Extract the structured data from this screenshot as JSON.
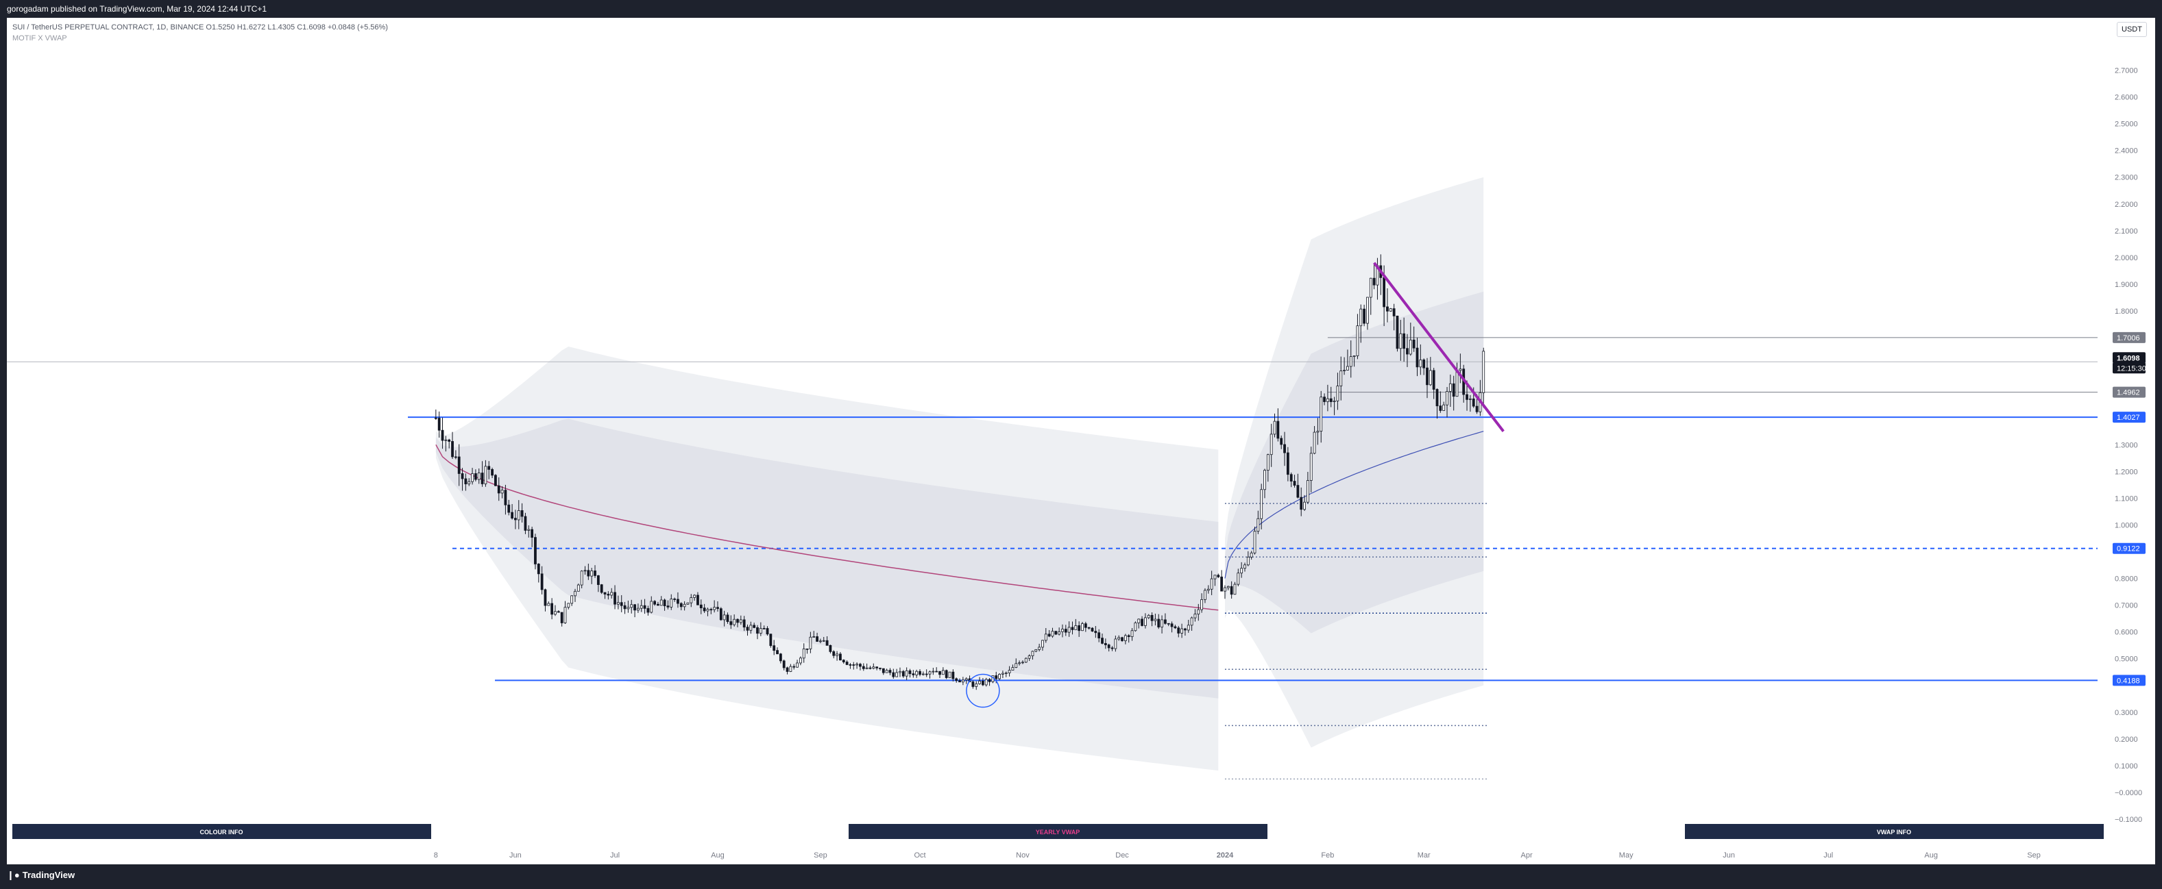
{
  "header": {
    "publisher_line": "gorogadam published on TradingView.com, Mar 19, 2024 12:44 UTC+1"
  },
  "legend": {
    "symbol_line": "SUI / TetherUS PERPETUAL CONTRACT, 1D, BINANCE",
    "open_label": "O",
    "open": "1.5250",
    "high_label": "H",
    "high": "1.6272",
    "low_label": "L",
    "low": "1.4305",
    "close_label": "C",
    "close": "1.6098",
    "change": "+0.0848 (+5.56%)",
    "indicator_line": "MOTIF X VWAP"
  },
  "currency": "USDT",
  "footer": {
    "logo_text": "TradingView"
  },
  "colors": {
    "up": "#131722",
    "down": "#131722",
    "wick": "#131722",
    "hline": "#2962ff",
    "trendline": "#9c27b0",
    "vwap_line": "#b2457a",
    "anchored_vwap": "#3f51b5",
    "band_outer": "#eef0f3",
    "band_inner": "#e1e3ea",
    "info_bar": "#1e2a47",
    "yearly_label": "#e83e8c"
  },
  "chart_data": {
    "type": "candlestick",
    "symbol": "SUI / TetherUS PERPETUAL CONTRACT",
    "timeframe": "1D",
    "exchange": "BINANCE",
    "ylim": [
      -0.1,
      2.75
    ],
    "y_ticks": [
      "2.7000",
      "2.6000",
      "2.5000",
      "2.4000",
      "2.3000",
      "2.2000",
      "2.1000",
      "2.0000",
      "1.9000",
      "1.8000",
      "1.3000",
      "1.2000",
      "1.1000",
      "1.0000",
      "0.8000",
      "0.7000",
      "0.6000",
      "0.5000",
      "0.3000",
      "0.2000",
      "0.1000",
      "−0.0000",
      "−0.1000"
    ],
    "x_ticks": [
      "8",
      "Jun",
      "Jul",
      "Aug",
      "Sep",
      "Oct",
      "Nov",
      "Dec",
      "2024",
      "Feb",
      "Mar",
      "Apr",
      "May",
      "Jun",
      "Jul",
      "Aug",
      "Sep"
    ],
    "price_labels": [
      {
        "text": "1.7006",
        "value": 1.7006,
        "style": "grey"
      },
      {
        "text": "1.6098",
        "value": 1.6098,
        "style": "last"
      },
      {
        "text": "12:15:30",
        "value": 1.6098,
        "style": "countdown"
      },
      {
        "text": "1.4962",
        "value": 1.4962,
        "style": "grey"
      },
      {
        "text": "1.4027",
        "value": 1.4027,
        "style": "blue"
      },
      {
        "text": "0.9122",
        "value": 0.9122,
        "style": "blue"
      },
      {
        "text": "0.4188",
        "value": 0.4188,
        "style": "blue"
      }
    ],
    "horizontal_lines": [
      {
        "value": 1.4027,
        "style": "solid"
      },
      {
        "value": 0.9122,
        "style": "dashed"
      },
      {
        "value": 0.4188,
        "style": "solid"
      }
    ],
    "trendline": {
      "from": [
        "2024-02-15",
        1.98
      ],
      "to": [
        "2024-03-25",
        1.35
      ]
    },
    "candles_close_path": [
      [
        "2023-05-08",
        1.4
      ],
      [
        "2023-05-12",
        1.3
      ],
      [
        "2023-05-18",
        1.15
      ],
      [
        "2023-05-24",
        1.2
      ],
      [
        "2023-05-30",
        1.05
      ],
      [
        "2023-06-05",
        1.0
      ],
      [
        "2023-06-10",
        0.7
      ],
      [
        "2023-06-15",
        0.65
      ],
      [
        "2023-06-22",
        0.85
      ],
      [
        "2023-06-28",
        0.75
      ],
      [
        "2023-07-05",
        0.68
      ],
      [
        "2023-07-15",
        0.7
      ],
      [
        "2023-07-25",
        0.72
      ],
      [
        "2023-08-05",
        0.64
      ],
      [
        "2023-08-15",
        0.6
      ],
      [
        "2023-08-22",
        0.45
      ],
      [
        "2023-08-30",
        0.58
      ],
      [
        "2023-09-10",
        0.48
      ],
      [
        "2023-09-25",
        0.44
      ],
      [
        "2023-10-05",
        0.46
      ],
      [
        "2023-10-18",
        0.4
      ],
      [
        "2023-10-28",
        0.45
      ],
      [
        "2023-11-08",
        0.58
      ],
      [
        "2023-11-18",
        0.62
      ],
      [
        "2023-11-28",
        0.55
      ],
      [
        "2023-12-08",
        0.65
      ],
      [
        "2023-12-20",
        0.6
      ],
      [
        "2023-12-28",
        0.8
      ],
      [
        "2024-01-03",
        0.75
      ],
      [
        "2024-01-10",
        0.95
      ],
      [
        "2024-01-16",
        1.4
      ],
      [
        "2024-01-24",
        1.05
      ],
      [
        "2024-01-30",
        1.45
      ],
      [
        "2024-02-06",
        1.55
      ],
      [
        "2024-02-12",
        1.8
      ],
      [
        "2024-02-15",
        1.95
      ],
      [
        "2024-02-22",
        1.7
      ],
      [
        "2024-03-01",
        1.6
      ],
      [
        "2024-03-06",
        1.45
      ],
      [
        "2024-03-12",
        1.55
      ],
      [
        "2024-03-17",
        1.4
      ],
      [
        "2024-03-19",
        1.61
      ]
    ]
  },
  "info_bars": {
    "colour_info": "COLOUR INFO",
    "yearly_vwap": "YEARLY VWAP",
    "vwap_info": "VWAP INFO"
  }
}
